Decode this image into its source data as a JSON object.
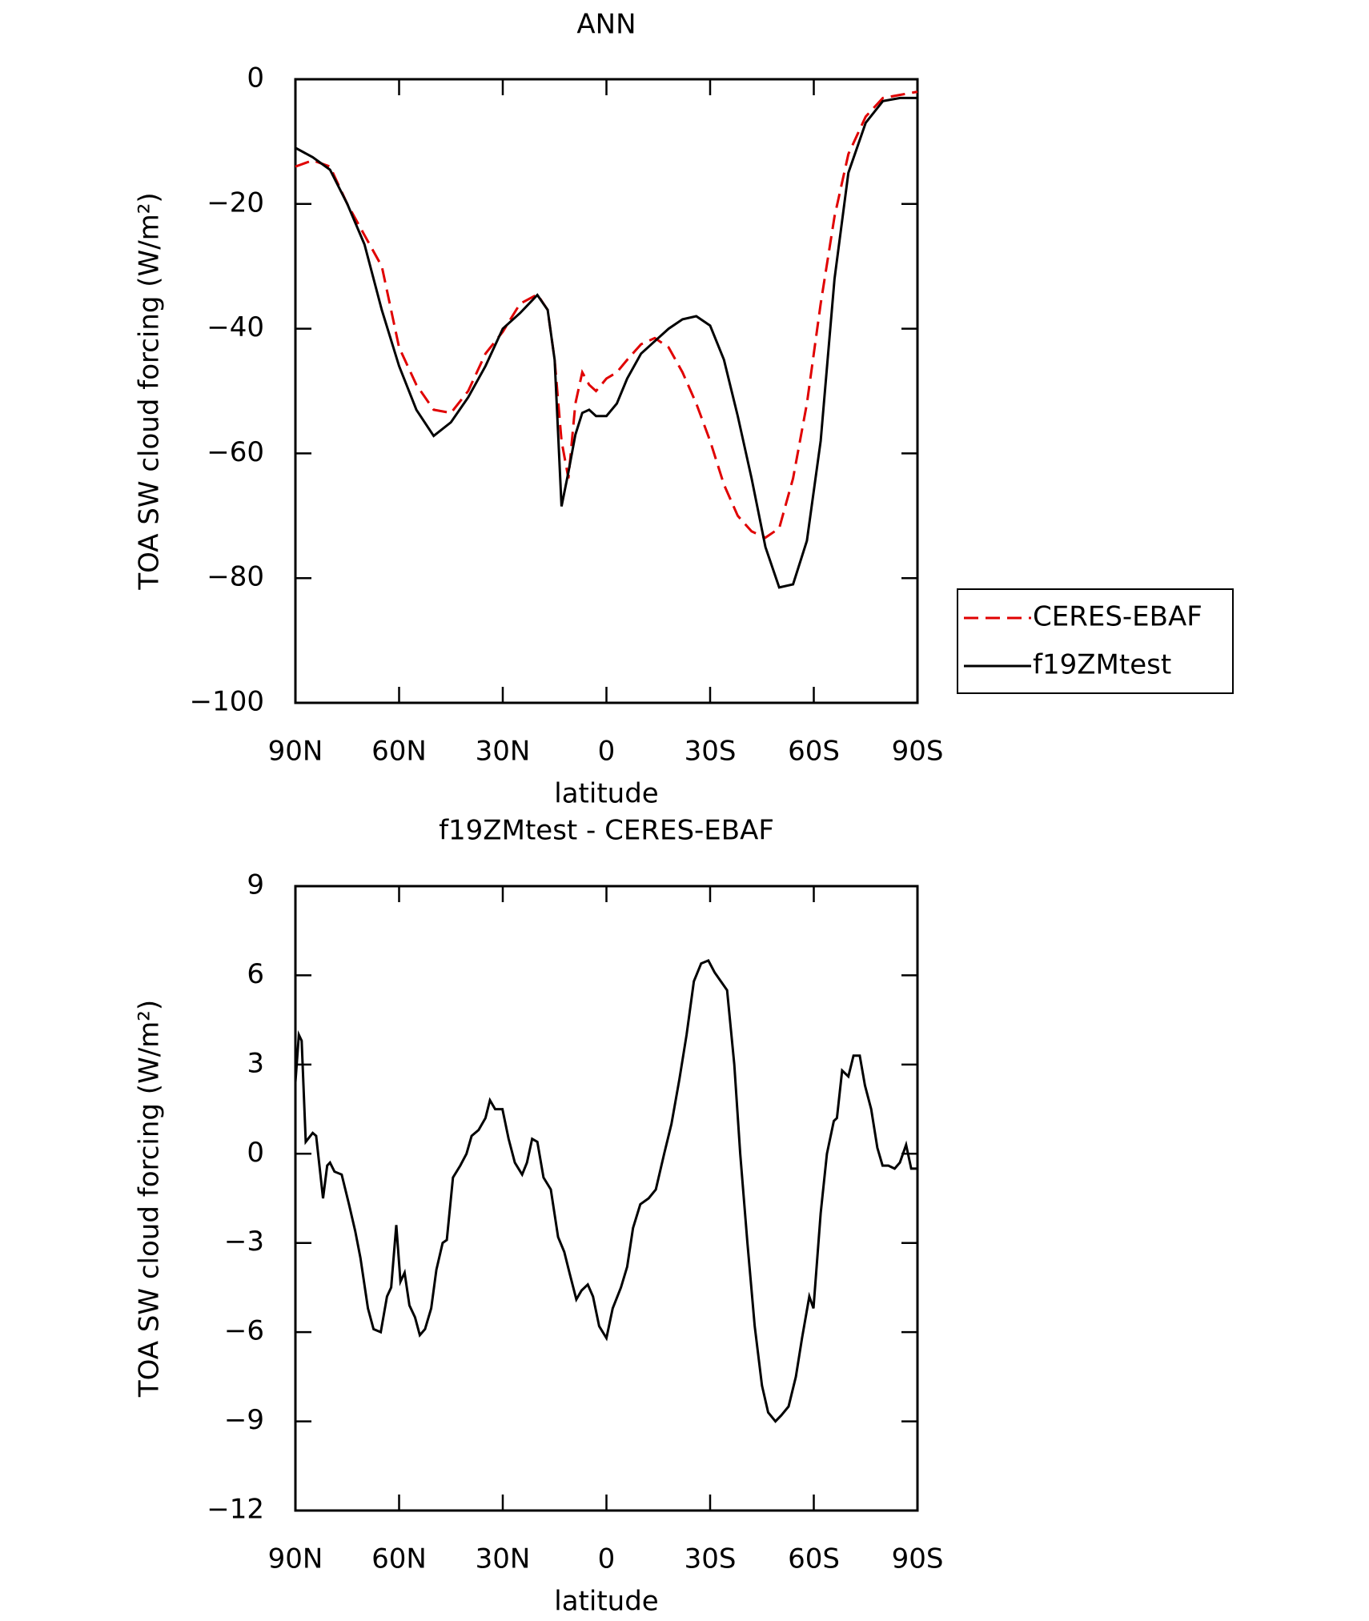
{
  "chart_data": [
    {
      "type": "line",
      "title": "ANN",
      "xlabel": "latitude",
      "ylabel": "TOA SW cloud forcing (W/m²)",
      "x": [
        90,
        85,
        80,
        75,
        70,
        65,
        60,
        55,
        50,
        45,
        40,
        35,
        30,
        25,
        20,
        17,
        15,
        13,
        11,
        9,
        7,
        5,
        3,
        0,
        -3,
        -6,
        -10,
        -14,
        -18,
        -22,
        -26,
        -30,
        -34,
        -38,
        -42,
        -46,
        -50,
        -54,
        -58,
        -62,
        -66,
        -70,
        -75,
        -80,
        -85,
        -90
      ],
      "series": [
        {
          "name": "CERES-EBAF",
          "color": "#e00000",
          "dash": true,
          "values": [
            -14,
            -13,
            -14,
            -20,
            -25,
            -30,
            -43,
            -49,
            -53,
            -53.5,
            -50,
            -44,
            -40.5,
            -36,
            -34.5,
            -37,
            -45,
            -58,
            -64,
            -52,
            -47,
            -49,
            -50,
            -48,
            -47,
            -45,
            -42.5,
            -41.5,
            -43,
            -47,
            -52,
            -58,
            -65,
            -70,
            -72.5,
            -73.5,
            -72,
            -64,
            -52,
            -36,
            -22,
            -12,
            -6,
            -3,
            -2.5,
            -2
          ]
        },
        {
          "name": "f19ZMtest",
          "color": "#000000",
          "dash": false,
          "values": [
            -11,
            -12.5,
            -14.5,
            -20,
            -26.5,
            -37,
            -46,
            -53,
            -57.2,
            -55,
            -51,
            -46,
            -40,
            -37.5,
            -34.6,
            -37,
            -45,
            -68.5,
            -63,
            -57,
            -53.5,
            -53,
            -54,
            -54,
            -52,
            -48,
            -44,
            -42,
            -40,
            -38.5,
            -38,
            -39.5,
            -45,
            -54,
            -64,
            -75,
            -81.5,
            -81,
            -74,
            -58,
            -32,
            -15,
            -7,
            -3.5,
            -3,
            -3
          ]
        }
      ],
      "xlim": [
        90,
        -90
      ],
      "xticks": [
        {
          "value": 90,
          "label": "90N"
        },
        {
          "value": 60,
          "label": "60N"
        },
        {
          "value": 30,
          "label": "30N"
        },
        0,
        {
          "value": -30,
          "label": "30S"
        },
        {
          "value": -60,
          "label": "60S"
        },
        {
          "value": -90,
          "label": "90S"
        }
      ],
      "ylim": [
        -100,
        0
      ],
      "yticks": [
        0,
        {
          "value": -20,
          "label": "−20"
        },
        {
          "value": -40,
          "label": "−40"
        },
        {
          "value": -60,
          "label": "−60"
        },
        {
          "value": -80,
          "label": "−80"
        },
        {
          "value": -100,
          "label": "−100"
        }
      ],
      "legend": "right"
    },
    {
      "type": "line",
      "title": "f19ZMtest - CERES-EBAF",
      "xlabel": "latitude",
      "ylabel": "TOA SW cloud forcing (W/m²)",
      "x": [
        90,
        89,
        88.2,
        87,
        85,
        84,
        82,
        80.8,
        80,
        78.7,
        76.6,
        74.5,
        72.7,
        71.2,
        69,
        67.4,
        65.3,
        63.5,
        62.3,
        60.8,
        59.6,
        58.4,
        57,
        55.4,
        54,
        52.5,
        50.7,
        49.2,
        47.4,
        46.2,
        44.4,
        42.3,
        40.5,
        39,
        37,
        35,
        33.7,
        32.2,
        30.1,
        28.3,
        26.5,
        24.4,
        23,
        21.5,
        20,
        18.2,
        16.1,
        14,
        12.2,
        10.7,
        8.7,
        7.2,
        5.4,
        3.9,
        2.1,
        0,
        -1.8,
        -4.2,
        -6,
        -7.7,
        -9.8,
        -12.2,
        -14.3,
        -16.7,
        -18.8,
        -21.1,
        -23.2,
        -25.3,
        -27.4,
        -29.5,
        -31.3,
        -33.1,
        -34.9,
        -37,
        -38.7,
        -40.8,
        -42.9,
        -45,
        -46.8,
        -48.9,
        -50.6,
        -52.7,
        -54.8,
        -56.6,
        -58.7,
        -59.9,
        -62,
        -63.8,
        -65.8,
        -66.7,
        -68.2,
        -70,
        -71.5,
        -73.3,
        -74.8,
        -76.6,
        -78.4,
        -79.9,
        -81.6,
        -83.4,
        -84.9,
        -86.7,
        -88.2,
        -90
      ],
      "series": [
        {
          "name": "f19ZMtest",
          "color": "#000000",
          "dash": false,
          "values": [
            2.4,
            4,
            3.8,
            0.4,
            0.7,
            0.6,
            -1.5,
            -0.4,
            -0.3,
            -0.6,
            -0.7,
            -1.7,
            -2.6,
            -3.5,
            -5.2,
            -5.9,
            -6,
            -4.8,
            -4.5,
            -2.4,
            -4.3,
            -4,
            -5.1,
            -5.5,
            -6.1,
            -5.9,
            -5.2,
            -3.9,
            -3,
            -2.9,
            -0.8,
            -0.4,
            0,
            0.6,
            0.8,
            1.2,
            1.8,
            1.5,
            1.5,
            0.5,
            -0.3,
            -0.7,
            -0.3,
            0.5,
            0.4,
            -0.8,
            -1.2,
            -2.8,
            -3.3,
            -4,
            -4.9,
            -4.6,
            -4.4,
            -4.8,
            -5.8,
            -6.2,
            -5.2,
            -4.5,
            -3.8,
            -2.5,
            -1.7,
            -1.5,
            -1.2,
            0,
            1,
            2.5,
            4,
            5.8,
            6.4,
            6.5,
            6.1,
            5.8,
            5.5,
            3,
            0,
            -3,
            -5.8,
            -7.8,
            -8.7,
            -9,
            -8.8,
            -8.5,
            -7.5,
            -6.2,
            -4.8,
            -5.2,
            -2,
            0,
            1.1,
            1.2,
            2.8,
            2.6,
            3.3,
            3.3,
            2.3,
            1.5,
            0.2,
            -0.4,
            -0.4,
            -0.5,
            -0.3,
            0.3,
            -0.5,
            -0.5
          ]
        }
      ],
      "xlim": [
        90,
        -90
      ],
      "xticks": [
        {
          "value": 90,
          "label": "90N"
        },
        {
          "value": 60,
          "label": "60N"
        },
        {
          "value": 30,
          "label": "30N"
        },
        0,
        {
          "value": -30,
          "label": "30S"
        },
        {
          "value": -60,
          "label": "60S"
        },
        {
          "value": -90,
          "label": "90S"
        }
      ],
      "ylim": [
        -12,
        9
      ],
      "yticks": [
        9,
        6,
        3,
        0,
        {
          "value": -3,
          "label": "−3"
        },
        {
          "value": -6,
          "label": "−6"
        },
        {
          "value": -9,
          "label": "−9"
        },
        {
          "value": -12,
          "label": "−12"
        }
      ]
    }
  ]
}
